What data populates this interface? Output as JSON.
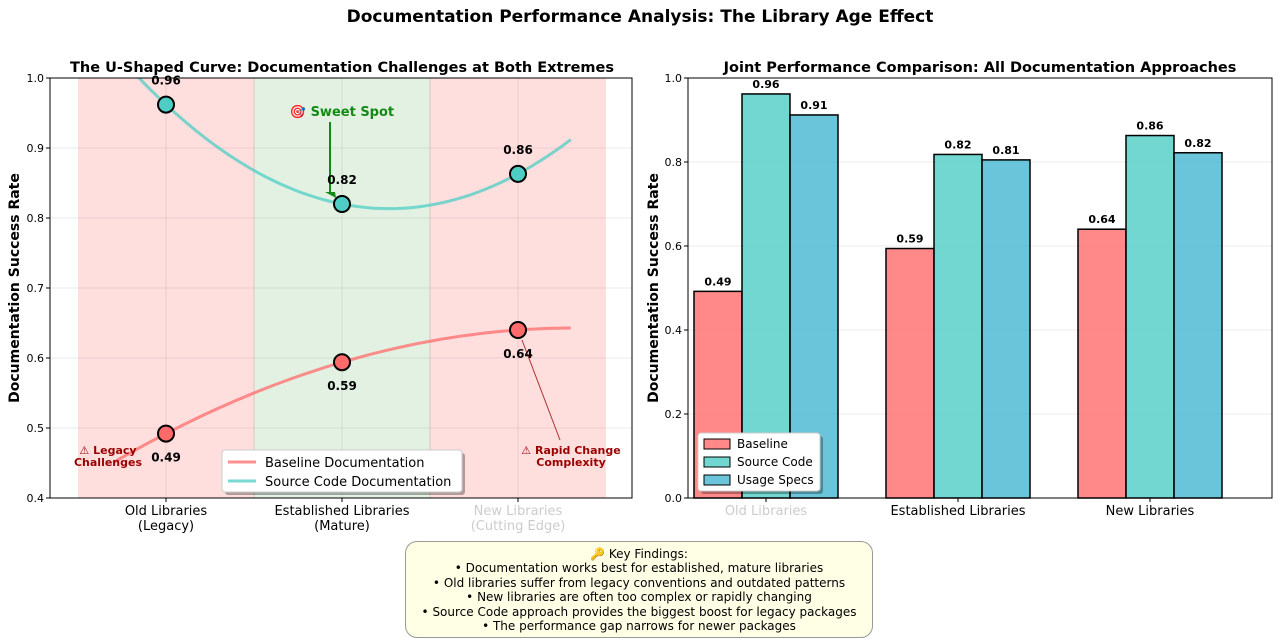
{
  "suptitle": "Documentation Performance Analysis: The Library Age Effect",
  "chart_data": [
    {
      "type": "line",
      "title": "The U-Shaped Curve: Documentation Challenges at Both Extremes",
      "ylabel": "Documentation Success Rate",
      "ylim": [
        0.4,
        1.0
      ],
      "yticks": [
        "0.4",
        "0.5",
        "0.6",
        "0.7",
        "0.8",
        "0.9",
        "1.0"
      ],
      "categories": [
        "Old Libraries\n(Legacy)",
        "Established Libraries\n(Mature)",
        "New Libraries\n(Cutting Edge)"
      ],
      "category_lines": [
        [
          "Old Libraries",
          "(Legacy)"
        ],
        [
          "Established Libraries",
          "(Mature)"
        ],
        [
          "New Libraries",
          "(Cutting Edge)"
        ]
      ],
      "series": [
        {
          "name": "Baseline Documentation",
          "values": [
            0.492,
            0.594,
            0.64
          ],
          "labels": [
            "0.49",
            "0.59",
            "0.64"
          ],
          "color": "#ff6b6b"
        },
        {
          "name": "Source Code Documentation",
          "values": [
            0.962,
            0.82,
            0.863
          ],
          "labels": [
            "0.96",
            "0.82",
            "0.86"
          ],
          "color": "#4ecdc4"
        }
      ],
      "annotations": {
        "sweet_spot": "🎯 Sweet Spot",
        "legacy": [
          "⚠ Legacy",
          "Challenges"
        ],
        "rapid": [
          "⚠ Rapid Change",
          "Complexity"
        ]
      },
      "legend": "lower-center",
      "grid": true
    },
    {
      "type": "bar",
      "title": "Joint Performance Comparison: All Documentation Approaches",
      "ylabel": "Documentation Success Rate",
      "ylim": [
        0,
        1.0
      ],
      "yticks": [
        "0.0",
        "0.2",
        "0.4",
        "0.6",
        "0.8",
        "1.0"
      ],
      "categories": [
        "Old Libraries",
        "Established Libraries",
        "New Libraries"
      ],
      "series": [
        {
          "name": "Baseline",
          "values": [
            0.492,
            0.594,
            0.64
          ],
          "labels": [
            "0.49",
            "0.59",
            "0.64"
          ],
          "color": "#ff6b6b"
        },
        {
          "name": "Source Code",
          "values": [
            0.962,
            0.818,
            0.863
          ],
          "labels": [
            "0.96",
            "0.82",
            "0.86"
          ],
          "color": "#4ecdc4"
        },
        {
          "name": "Usage Specs",
          "values": [
            0.912,
            0.805,
            0.822
          ],
          "labels": [
            "0.91",
            "0.81",
            "0.82"
          ],
          "color": "#45b7d1"
        }
      ],
      "legend": "lower-left",
      "grid": true
    }
  ],
  "findings": {
    "title": "🔑 Key Findings:",
    "items": [
      "• Documentation works best for established, mature libraries",
      "• Old libraries suffer from legacy conventions and outdated patterns",
      "• New libraries are often too complex or rapidly changing",
      "• Source Code approach provides the biggest boost for legacy packages",
      "• The performance gap narrows for newer packages"
    ]
  }
}
